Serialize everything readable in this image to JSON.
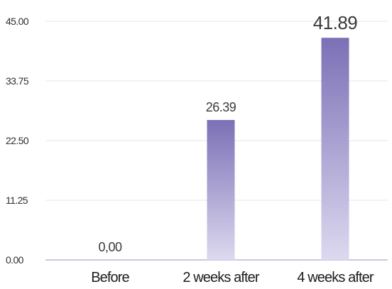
{
  "chart_data": {
    "type": "bar",
    "categories": [
      "Before",
      "2 weeks after",
      "4 weeks after"
    ],
    "values": [
      0.0,
      26.39,
      41.89
    ],
    "value_labels": [
      "0,00",
      "26.39",
      "41.89"
    ],
    "y_ticks": [
      "0.00",
      "11.25",
      "22.50",
      "33.75",
      "45.00"
    ],
    "y_tick_values": [
      0,
      11.25,
      22.5,
      33.75,
      45
    ],
    "ylim": [
      0,
      45
    ],
    "grid": true,
    "legend": "none",
    "colors": {
      "bar_top": "#7b70b6",
      "bar_bottom": "#dcd9ef",
      "baseline": "#cac7e4",
      "grid": "#e4e4e8"
    }
  }
}
